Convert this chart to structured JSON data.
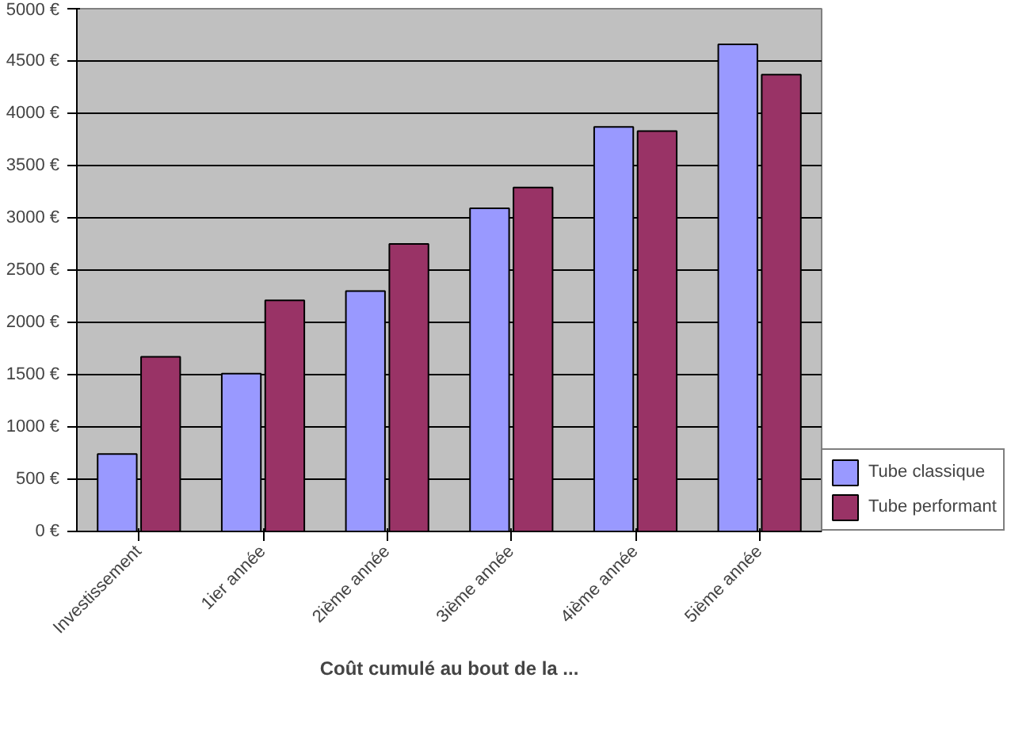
{
  "chart_data": {
    "type": "bar",
    "xlabel": "Coût cumulé au bout de la ...",
    "categories": [
      "Investissement",
      "1ier année",
      "2ième année",
      "3ième année",
      "4ième année",
      "5ième année"
    ],
    "series": [
      {
        "name": "Tube classique",
        "color": "#9999ff",
        "values": [
          740,
          1510,
          2300,
          3090,
          3870,
          4660
        ]
      },
      {
        "name": "Tube performant",
        "color": "#993366",
        "values": [
          1670,
          2210,
          2750,
          3290,
          3830,
          4370
        ]
      }
    ],
    "ylim": [
      0,
      5000
    ],
    "yticks": [
      {
        "value": 0,
        "label": "0 €"
      },
      {
        "value": 500,
        "label": "500 €"
      },
      {
        "value": 1000,
        "label": "1000 €"
      },
      {
        "value": 1500,
        "label": "1500 €"
      },
      {
        "value": 2000,
        "label": "2000 €"
      },
      {
        "value": 2500,
        "label": "2500 €"
      },
      {
        "value": 3000,
        "label": "3000 €"
      },
      {
        "value": 3500,
        "label": "3500 €"
      },
      {
        "value": 4000,
        "label": "4000 €"
      },
      {
        "value": 4500,
        "label": "4500 €"
      },
      {
        "value": 5000,
        "label": "5000 €"
      }
    ],
    "grid": "y",
    "legend": "bottom right"
  }
}
